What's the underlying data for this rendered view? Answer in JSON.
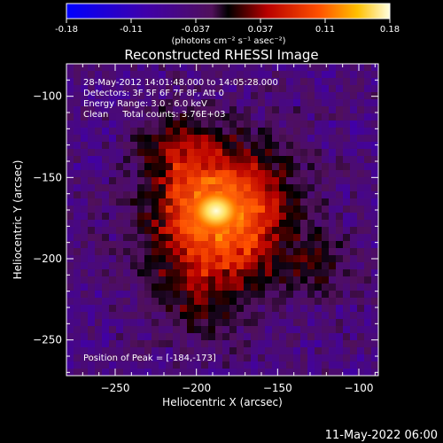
{
  "colorbar": {
    "ticks": [
      "-0.18",
      "-0.11",
      "-0.037",
      "0.037",
      "0.11",
      "0.18"
    ],
    "units": "(photons cm⁻² s⁻¹ asec⁻²)"
  },
  "title": "Reconstructed RHESSI Image",
  "annotations": {
    "time_range": "28-May-2012 14:01:48.000 to 14:05:28.000",
    "detectors": "Detectors: 3F 5F 6F 7F 8F, Att 0",
    "energy_range": "Energy Range: 3.0 - 6.0 keV",
    "method_counts": "Clean     Total counts: 3.76E+03",
    "peak_position": "Position of Peak = [-184,-173]"
  },
  "axes": {
    "xlabel": "Heliocentric X (arcsec)",
    "ylabel": "Heliocentric Y (arcsec)",
    "xticks": [
      "-250",
      "-200",
      "-150",
      "-100"
    ],
    "yticks": [
      "-100",
      "-150",
      "-200",
      "-250"
    ],
    "xlim": [
      -280,
      -88
    ],
    "ylim": [
      -272,
      -80
    ]
  },
  "peak": {
    "x": -184,
    "y": -173
  },
  "footer_date": "11-May-2022 06:00"
}
